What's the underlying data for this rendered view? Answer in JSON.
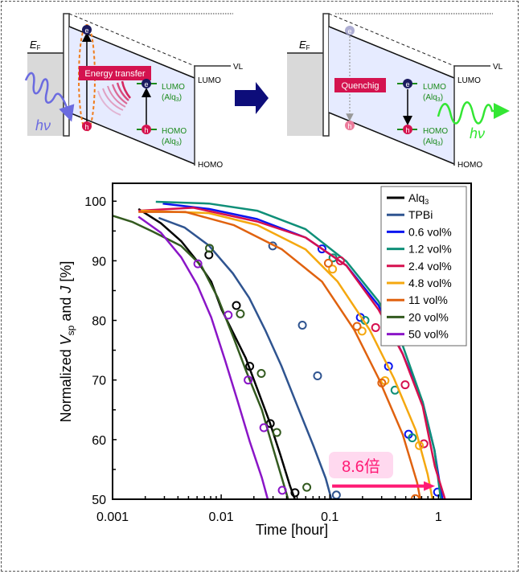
{
  "diagram": {
    "left_panel": {
      "fermi_label": "E",
      "fermi_sub": "F",
      "transfer_label": "Energy transfer",
      "lumo_label": "LUMO",
      "homo_label": "HOMO",
      "alq3_lumo": "LUMO",
      "alq3_homo": "HOMO",
      "alq3_paren_open": "(Alq",
      "alq3_sub": "3",
      "alq3_paren_close": ")",
      "vl_label": "VL",
      "photon_label": "hν",
      "electron": "e",
      "hole": "h"
    },
    "right_panel": {
      "fermi_label": "E",
      "fermi_sub": "F",
      "quench_label": "Quenchig",
      "lumo_label": "LUMO",
      "homo_label": "HOMO",
      "alq3_lumo": "LUMO",
      "alq3_homo": "HOMO",
      "alq3_paren_open": "(Alq",
      "alq3_sub": "3",
      "alq3_paren_close": ")",
      "vl_label": "VL",
      "photon_label": "hν",
      "electron": "e",
      "hole": "h"
    },
    "colors": {
      "arrow": "#0d0d7a",
      "label_bg": "#d4134f",
      "green": "#1a8a1a",
      "photon_in": "#6b6be0",
      "photon_out": "#33e633",
      "orange_dash": "#f07c1c",
      "layer_fill": "#e6ebff",
      "metal_fill": "#d9d9d9"
    }
  },
  "chart_data": {
    "type": "line",
    "xscale": "log",
    "xlim": [
      0.001,
      2
    ],
    "ylim": [
      50,
      103
    ],
    "xlabel": "Time [hour]",
    "ylabel_parts": [
      "Normalized ",
      "V",
      "sp",
      " and ",
      "J",
      " [%]"
    ],
    "xticks": [
      0.001,
      0.01,
      0.1,
      1
    ],
    "xtick_labels": [
      "0.001",
      "0.01",
      "0.1",
      "1"
    ],
    "yticks": [
      50,
      60,
      70,
      80,
      90,
      100
    ],
    "ytick_labels": [
      "50",
      "60",
      "70",
      "80",
      "90",
      "100"
    ],
    "legend_position": "top-right",
    "annotation": {
      "text": "8.6倍",
      "from_x": 0.105,
      "to_x": 0.93,
      "y": 52.2,
      "color": "#ff1a75",
      "bg": "#ffd9ef"
    },
    "series": [
      {
        "name": "Alq3",
        "legend_main": "Alq",
        "legend_sub": "3",
        "color": "#000000",
        "x": [
          0.00173,
          0.00279,
          0.00428,
          0.00604,
          0.0081,
          0.0101,
          0.013,
          0.0168,
          0.0217,
          0.028,
          0.035,
          0.0431,
          0.0477
        ],
        "y": [
          98.7,
          96.3,
          93.3,
          89.9,
          86.5,
          81.8,
          77.8,
          73.7,
          68.3,
          62.9,
          57.5,
          52.2,
          50.0
        ],
        "markers_x": [
          0.0077,
          0.0138,
          0.0183,
          0.0283,
          0.0478
        ],
        "markers_y": [
          91.0,
          82.5,
          72.3,
          62.7,
          51.1
        ]
      },
      {
        "name": "TPBi",
        "legend_main": "TPBi",
        "legend_sub": "",
        "color": "#2f5490",
        "x": [
          0.00266,
          0.00459,
          0.00767,
          0.0128,
          0.0181,
          0.0254,
          0.0358,
          0.0504,
          0.0709,
          0.0917,
          0.1035
        ],
        "y": [
          97.2,
          95.6,
          92.6,
          87.9,
          83.8,
          78.4,
          72.4,
          65.6,
          58.9,
          53.5,
          50.0
        ],
        "markers_x": [
          0.0298,
          0.0559,
          0.0771,
          0.1149
        ],
        "markers_y": [
          92.5,
          79.2,
          70.7,
          50.7
        ]
      },
      {
        "name": "0.6 vol%",
        "legend_main": "0.6 vol%",
        "legend_sub": "",
        "color": "#0a14f0",
        "x": [
          0.0029,
          0.0077,
          0.0214,
          0.0599,
          0.142,
          0.281,
          0.468,
          0.716,
          0.919,
          1.05,
          1.09
        ],
        "y": [
          99.6,
          98.7,
          97.0,
          93.9,
          89.2,
          82.5,
          74.4,
          66.3,
          58.2,
          51.5,
          50.0
        ],
        "markers_x": [
          0.0846,
          0.191,
          0.347,
          0.531,
          0.982
        ],
        "markers_y": [
          92.0,
          80.5,
          72.3,
          60.9,
          51.2
        ]
      },
      {
        "name": "1.2 vol%",
        "legend_main": "1.2 vol%",
        "legend_sub": "",
        "color": "#0f8f78",
        "x": [
          0.0025,
          0.0077,
          0.0214,
          0.0599,
          0.142,
          0.281,
          0.468,
          0.716,
          0.919,
          1.05
        ],
        "y": [
          99.9,
          99.6,
          98.4,
          95.3,
          89.9,
          83.2,
          75.8,
          66.3,
          58.2,
          50.0
        ],
        "markers_x": [
          0.107,
          0.211,
          0.398,
          0.574
        ],
        "markers_y": [
          90.5,
          80.0,
          68.3,
          60.3
        ]
      },
      {
        "name": "2.4 vol%",
        "legend_main": "2.4 vol%",
        "legend_sub": "",
        "color": "#d6104f",
        "x": [
          0.00173,
          0.00555,
          0.0214,
          0.0599,
          0.142,
          0.281,
          0.468,
          0.716,
          0.927,
          1.15
        ],
        "y": [
          98.4,
          98.9,
          96.6,
          93.9,
          89.2,
          81.8,
          74.4,
          65.6,
          55.5,
          50.0
        ],
        "markers_x": [
          0.125,
          0.264,
          0.494,
          0.735
        ],
        "markers_y": [
          90.0,
          78.8,
          69.2,
          59.3
        ]
      },
      {
        "name": "4.8 vol%",
        "legend_main": "4.8 vol%",
        "legend_sub": "",
        "color": "#f5a80f",
        "x": [
          0.00182,
          0.0077,
          0.0214,
          0.0599,
          0.118,
          0.233,
          0.389,
          0.617,
          0.796,
          0.881
        ],
        "y": [
          98.4,
          98.0,
          96.0,
          91.9,
          86.5,
          78.4,
          70.3,
          61.6,
          54.2,
          50.0
        ],
        "markers_x": [
          0.106,
          0.198,
          0.322,
          0.667
        ],
        "markers_y": [
          88.6,
          78.2,
          69.9,
          59.0
        ]
      },
      {
        "name": "11 vol%",
        "legend_main": "11 vol%",
        "legend_sub": "",
        "color": "#e0620f",
        "x": [
          0.00173,
          0.00467,
          0.013,
          0.0363,
          0.0848,
          0.168,
          0.281,
          0.468,
          0.636,
          0.68
        ],
        "y": [
          98.2,
          98.2,
          96.0,
          91.9,
          86.5,
          78.4,
          70.3,
          60.9,
          52.8,
          50.0
        ],
        "markers_x": [
          0.097,
          0.178,
          0.301,
          0.612
        ],
        "markers_y": [
          89.6,
          79.0,
          69.5,
          50.1
        ]
      },
      {
        "name": "20 vol%",
        "legend_main": "20 vol%",
        "legend_sub": "",
        "color": "#335a1f",
        "x": [
          0.00095,
          0.00153,
          0.00235,
          0.00427,
          0.00655,
          0.0093,
          0.013,
          0.0168,
          0.0237,
          0.0304,
          0.0391,
          0.0413
        ],
        "y": [
          97.7,
          96.5,
          94.9,
          92.5,
          89.2,
          83.8,
          77.1,
          71.7,
          65.0,
          58.2,
          51.5,
          50.0
        ],
        "markers_x": [
          0.0078,
          0.015,
          0.0234,
          0.0325,
          0.0614
        ],
        "markers_y": [
          92.1,
          81.1,
          71.1,
          61.2,
          52.0
        ]
      },
      {
        "name": "50 vol%",
        "legend_main": "50 vol%",
        "legend_sub": "",
        "color": "#8a15c7",
        "x": [
          0.00173,
          0.00279,
          0.00428,
          0.00604,
          0.0081,
          0.0109,
          0.0142,
          0.0183,
          0.0237,
          0.0268
        ],
        "y": [
          97.4,
          94.7,
          90.6,
          85.9,
          80.5,
          73.2,
          66.4,
          59.7,
          53.6,
          50.0
        ],
        "markers_x": [
          0.0061,
          0.0116,
          0.0177,
          0.0247,
          0.0365
        ],
        "markers_y": [
          89.5,
          80.9,
          70.0,
          62.0,
          51.5
        ]
      }
    ]
  }
}
